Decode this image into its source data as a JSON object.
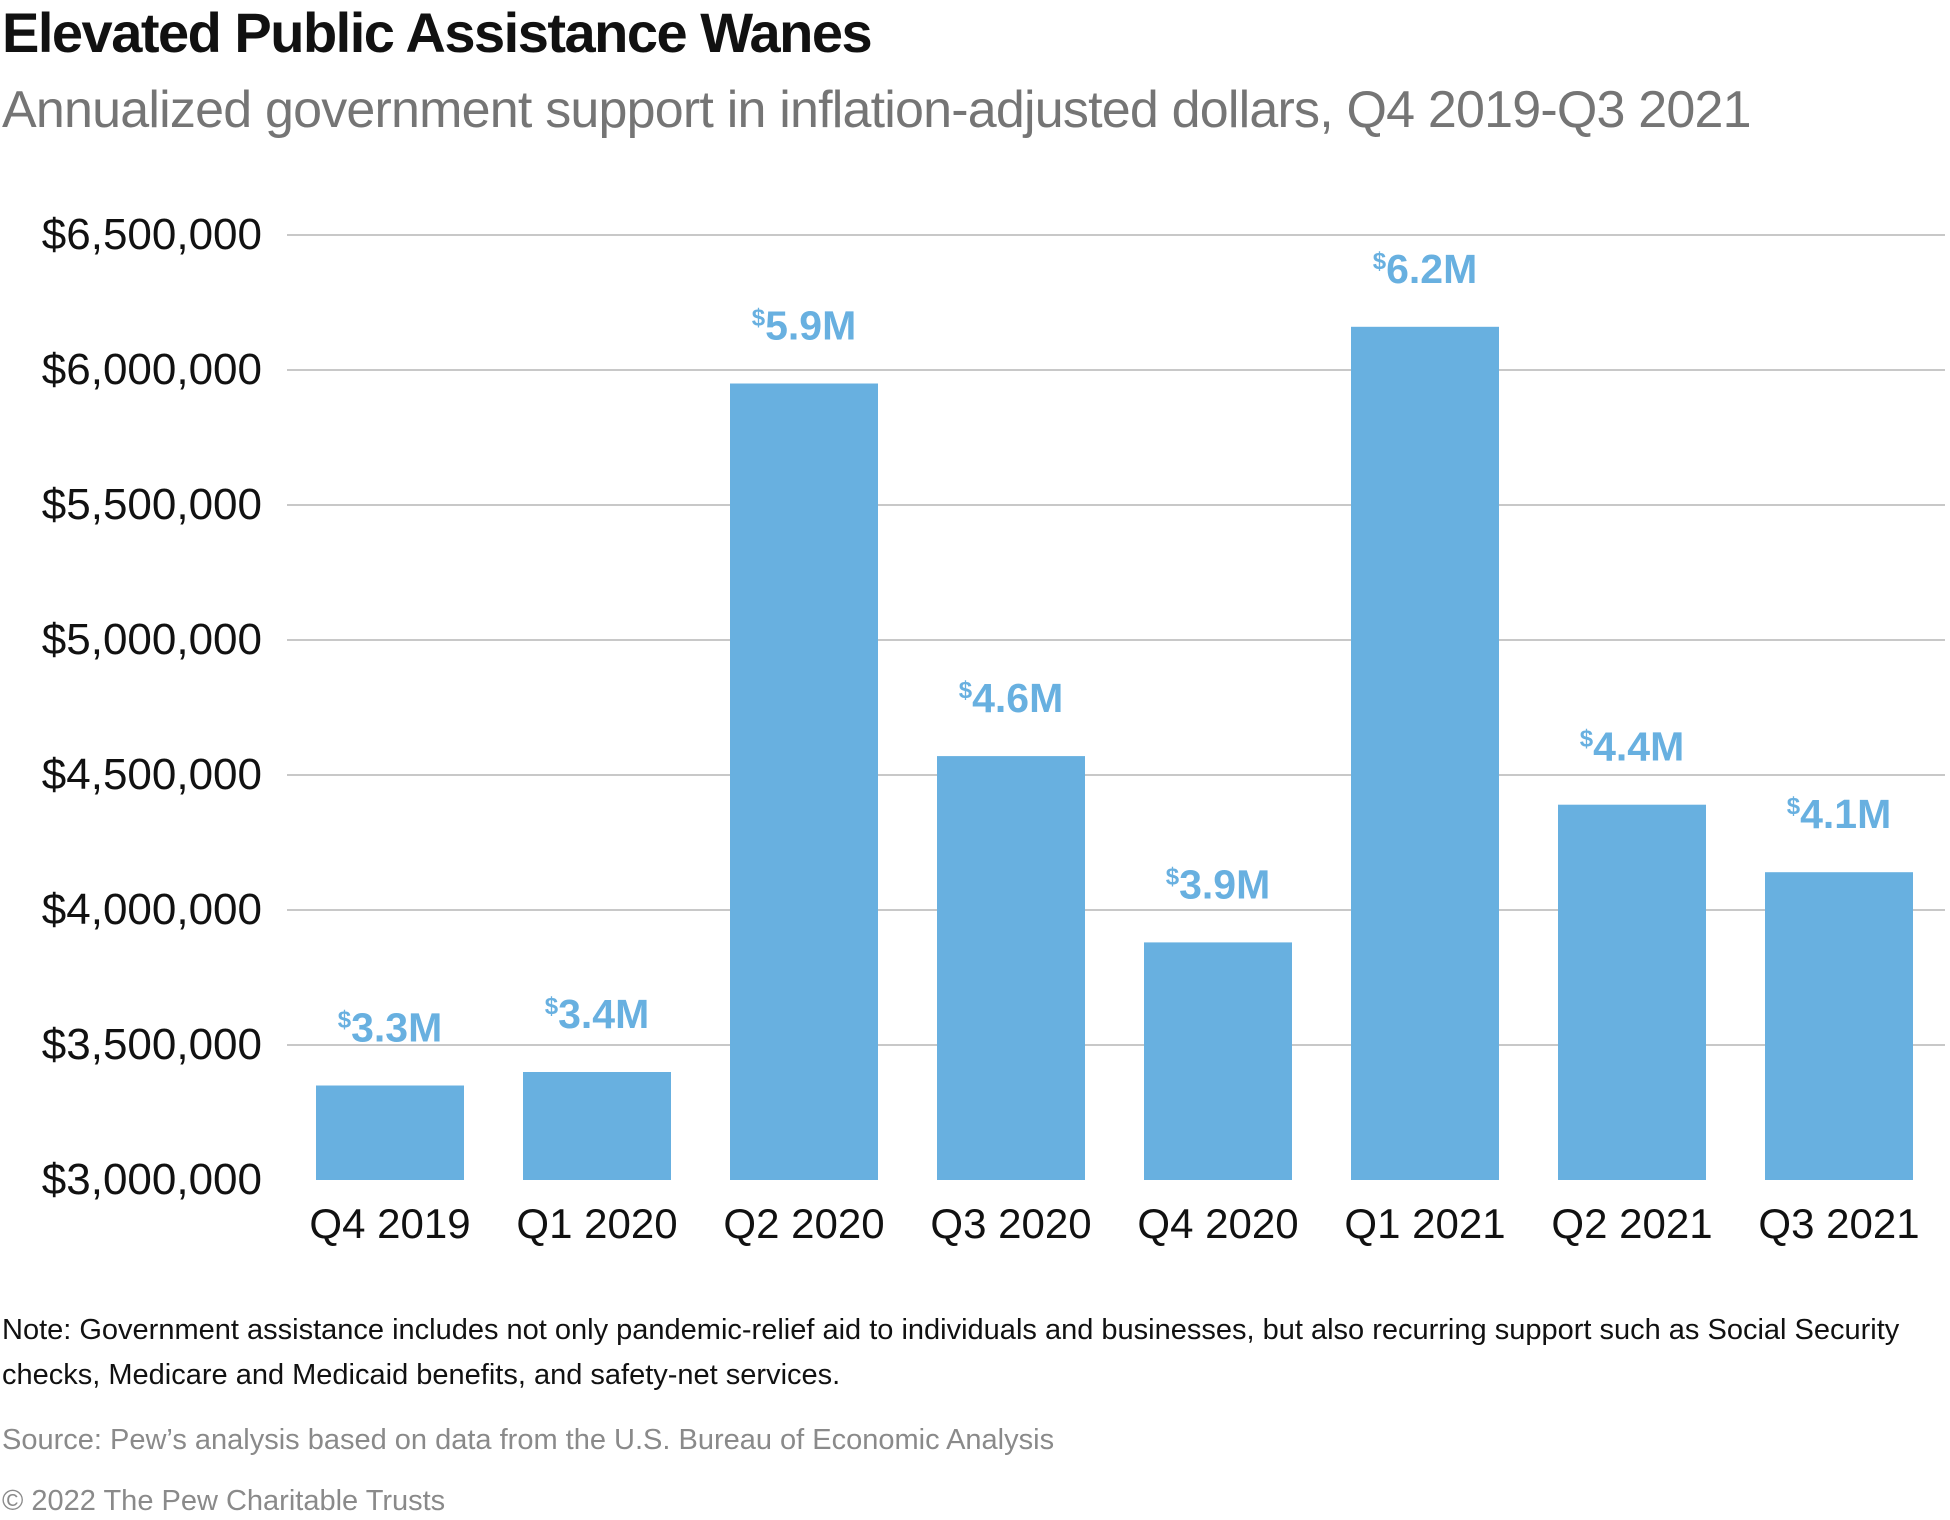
{
  "title": "Elevated Public Assistance Wanes",
  "subtitle": "Annualized government support in inflation-adjusted dollars, Q4 2019-Q3 2021",
  "note": "Note: Government assistance includes not only pandemic-relief aid to individuals and businesses, but also recurring support such as Social Security checks, Medicare and Medicaid benefits, and safety-net services.",
  "source": "Source: Pew’s analysis based on data from the U.S. Bureau of Economic Analysis",
  "copyright": "© 2022 The Pew Charitable Trusts",
  "colors": {
    "bar": "#68b0e0",
    "label": "#68b0e0",
    "grid": "#c8c8c8",
    "text": "#111111"
  },
  "chart_data": {
    "type": "bar",
    "categories": [
      "Q4 2019",
      "Q1 2020",
      "Q2 2020",
      "Q3 2020",
      "Q4 2020",
      "Q1 2021",
      "Q2 2021",
      "Q3 2021"
    ],
    "values": [
      3350000,
      3400000,
      5950000,
      4570000,
      3880000,
      6160000,
      4390000,
      4140000
    ],
    "data_labels": [
      "3.3M",
      "3.4M",
      "5.9M",
      "4.6M",
      "3.9M",
      "6.2M",
      "4.4M",
      "4.1M"
    ],
    "data_label_prefix": "$",
    "ylim": [
      3000000,
      6500000
    ],
    "yticks": [
      3000000,
      3500000,
      4000000,
      4500000,
      5000000,
      5500000,
      6000000,
      6500000
    ],
    "ytick_labels": [
      "$3,000,000",
      "$3,500,000",
      "$4,000,000",
      "$4,500,000",
      "$5,000,000",
      "$5,500,000",
      "$6,000,000",
      "$6,500,000"
    ],
    "grid": true,
    "xlabel": "",
    "ylabel": ""
  }
}
